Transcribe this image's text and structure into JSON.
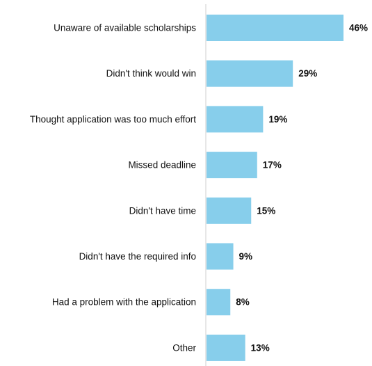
{
  "chart_data": {
    "type": "bar",
    "orientation": "horizontal",
    "categories": [
      "Unaware of available scholarships",
      "Didn't think would win",
      "Thought application was too much effort",
      "Missed deadline",
      "Didn't have time",
      "Didn't have the required info",
      "Had a problem with the application",
      "Other"
    ],
    "values": [
      46,
      29,
      19,
      17,
      15,
      9,
      8,
      13
    ],
    "value_labels": [
      "46%",
      "29%",
      "19%",
      "17%",
      "15%",
      "9%",
      "8%",
      "13%"
    ],
    "xlim": [
      0,
      46
    ],
    "grid": false,
    "bar_color": "#87ceeb",
    "axis_color": "#cfcfcf",
    "title": "",
    "xlabel": "",
    "ylabel": ""
  }
}
